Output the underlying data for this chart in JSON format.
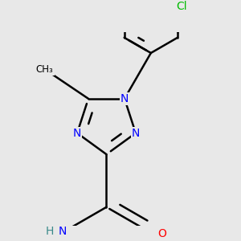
{
  "background_color": "#e8e8e8",
  "bond_color": "#000000",
  "bond_width": 1.8,
  "atom_colors": {
    "N": "#0000ff",
    "O": "#ff0000",
    "Cl": "#00bb00",
    "C": "#000000",
    "H": "#3a8a8a"
  },
  "font_size_atom": 10,
  "font_size_methyl": 8.5
}
